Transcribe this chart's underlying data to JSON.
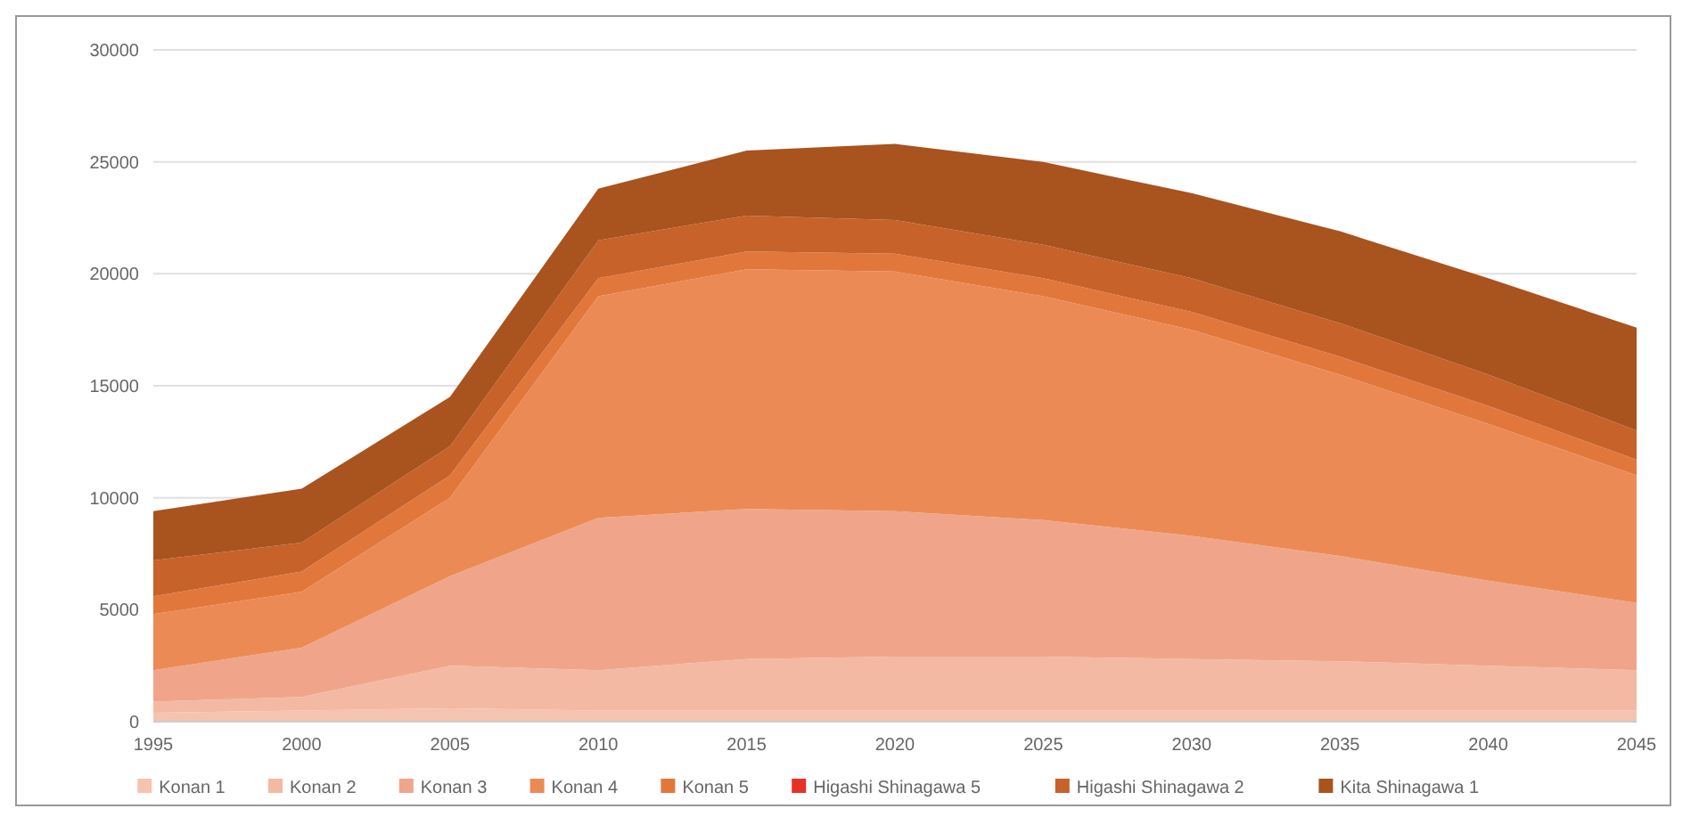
{
  "chart_data": {
    "type": "area",
    "stacked": true,
    "x": [
      1995,
      2000,
      2005,
      2010,
      2015,
      2020,
      2025,
      2030,
      2035,
      2040,
      2045
    ],
    "xlim": [
      1995,
      2045
    ],
    "xticks": [
      1995,
      2000,
      2005,
      2010,
      2015,
      2020,
      2025,
      2030,
      2035,
      2040,
      2045
    ],
    "ylim": [
      0,
      30000
    ],
    "yticks": [
      0,
      5000,
      10000,
      15000,
      20000,
      25000,
      30000
    ],
    "grid": "y",
    "legend": "bottom",
    "series": [
      {
        "name": "Konan 1",
        "color": "#f5c4b0",
        "values": [
          400,
          500,
          600,
          500,
          500,
          500,
          500,
          500,
          500,
          500,
          500
        ]
      },
      {
        "name": "Konan 2",
        "color": "#f3b9a3",
        "values": [
          500,
          600,
          1900,
          1800,
          2300,
          2400,
          2400,
          2300,
          2200,
          2000,
          1800
        ]
      },
      {
        "name": "Konan 3",
        "color": "#f0a58a",
        "values": [
          1400,
          2200,
          4000,
          6800,
          6700,
          6500,
          6100,
          5500,
          4700,
          3800,
          3000
        ]
      },
      {
        "name": "Konan 4",
        "color": "#ec8a55",
        "values": [
          2500,
          2500,
          3500,
          9900,
          10700,
          10700,
          10000,
          9200,
          8100,
          7000,
          5700
        ]
      },
      {
        "name": "Konan 5",
        "color": "#e2773c",
        "values": [
          800,
          900,
          1000,
          800,
          800,
          800,
          800,
          800,
          800,
          800,
          700
        ]
      },
      {
        "name": "Higashi Shinagawa 5",
        "color": "#e8302a",
        "values": [
          null,
          null,
          null,
          null,
          null,
          null,
          null,
          null,
          null,
          null,
          null
        ]
      },
      {
        "name": "Higashi Shinagawa 2",
        "color": "#c6622a",
        "values": [
          1600,
          1300,
          1300,
          1700,
          1600,
          1500,
          1500,
          1500,
          1500,
          1400,
          1300
        ]
      },
      {
        "name": "Kita Shinagawa 1",
        "color": "#a9531f",
        "values": [
          2200,
          2400,
          2200,
          2300,
          2900,
          3400,
          3700,
          3800,
          4100,
          4300,
          4600
        ]
      }
    ]
  }
}
